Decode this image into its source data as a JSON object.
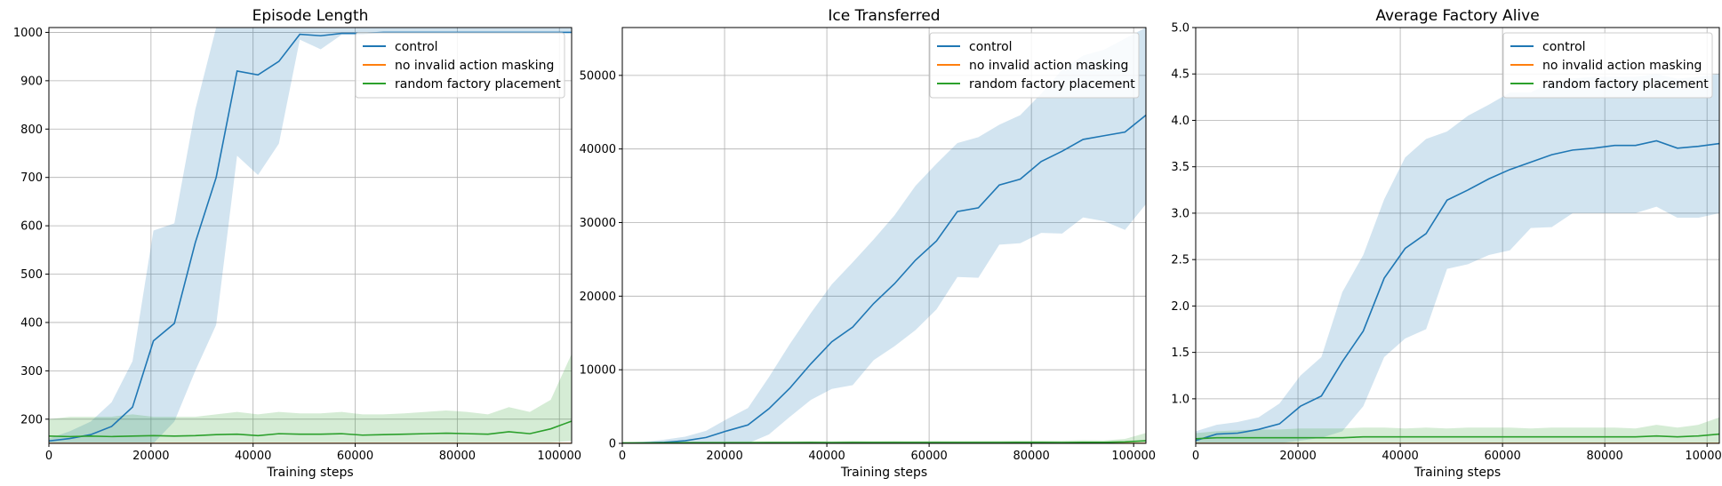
{
  "chart_data": [
    {
      "type": "line",
      "title": "Episode Length",
      "xlabel": "Training steps",
      "ylabel": "",
      "xlim": [
        0,
        102400
      ],
      "ylim": [
        150,
        1010
      ],
      "xticks": [
        0,
        20000,
        40000,
        60000,
        80000,
        100000
      ],
      "yticks": [
        200,
        300,
        400,
        500,
        600,
        700,
        800,
        900,
        1000
      ],
      "grid": true,
      "legend_position": "top-right",
      "x": [
        0,
        4096,
        8192,
        12288,
        16384,
        20480,
        24576,
        28672,
        32768,
        36864,
        40960,
        45056,
        49152,
        53248,
        57344,
        61440,
        65536,
        69632,
        73728,
        77824,
        81920,
        86016,
        90112,
        94208,
        98304,
        102400
      ],
      "series": [
        {
          "name": "control",
          "color": "#1f77b4",
          "values": [
            155,
            160,
            168,
            185,
            225,
            362,
            398,
            565,
            700,
            920,
            912,
            940,
            996,
            993,
            998,
            998,
            1000,
            1000,
            1000,
            1000,
            1000,
            1000,
            1000,
            1000,
            1000,
            1000
          ],
          "lower": [
            150,
            150,
            150,
            150,
            150,
            150,
            195,
            300,
            395,
            745,
            705,
            770,
            985,
            965,
            995,
            995,
            1000,
            1000,
            1000,
            1000,
            1000,
            1000,
            1000,
            1000,
            1000,
            1000
          ],
          "upper": [
            160,
            175,
            195,
            235,
            320,
            590,
            605,
            840,
            1010,
            1010,
            1010,
            1010,
            1010,
            1010,
            1010,
            1010,
            1010,
            1010,
            1010,
            1010,
            1010,
            1010,
            1010,
            1010,
            1010,
            1010
          ]
        },
        {
          "name": "no invalid action masking",
          "color": "#ff7f0e",
          "values": [
            150,
            150,
            150,
            150,
            150,
            150,
            150,
            150,
            150,
            150,
            150,
            150,
            150,
            150,
            150,
            150,
            150,
            150,
            150,
            150,
            150,
            150,
            150,
            150,
            150,
            150
          ]
        },
        {
          "name": "random factory placement",
          "color": "#2ca02c",
          "values": [
            165,
            164,
            165,
            164,
            165,
            166,
            165,
            166,
            168,
            169,
            166,
            170,
            169,
            169,
            170,
            167,
            168,
            169,
            170,
            171,
            170,
            169,
            174,
            170,
            180,
            196
          ],
          "lower": [
            152,
            152,
            152,
            152,
            152,
            152,
            152,
            152,
            152,
            152,
            152,
            152,
            152,
            152,
            152,
            152,
            152,
            152,
            152,
            152,
            152,
            152,
            152,
            152,
            152,
            155
          ],
          "upper": [
            200,
            205,
            205,
            205,
            210,
            205,
            205,
            205,
            210,
            215,
            210,
            215,
            212,
            212,
            215,
            210,
            210,
            212,
            215,
            218,
            215,
            210,
            225,
            215,
            240,
            335
          ]
        }
      ]
    },
    {
      "type": "line",
      "title": "Ice Transferred",
      "xlabel": "Training steps",
      "ylabel": "",
      "xlim": [
        0,
        102400
      ],
      "ylim": [
        0,
        56500
      ],
      "xticks": [
        0,
        20000,
        40000,
        60000,
        80000,
        100000
      ],
      "yticks": [
        0,
        10000,
        20000,
        30000,
        40000,
        50000
      ],
      "grid": true,
      "legend_position": "top-right",
      "x": [
        0,
        4096,
        8192,
        12288,
        16384,
        20480,
        24576,
        28672,
        32768,
        36864,
        40960,
        45056,
        49152,
        53248,
        57344,
        61440,
        65536,
        69632,
        73728,
        77824,
        81920,
        86016,
        90112,
        94208,
        98304,
        102400
      ],
      "series": [
        {
          "name": "control",
          "color": "#1f77b4",
          "values": [
            0,
            50,
            150,
            350,
            800,
            1700,
            2500,
            4700,
            7500,
            10800,
            13800,
            15800,
            19000,
            21700,
            24900,
            27500,
            31500,
            32000,
            35100,
            35900,
            38300,
            39700,
            41300,
            41800,
            42300,
            44600
          ],
          "lower": [
            0,
            0,
            0,
            0,
            0,
            0,
            0,
            1200,
            3600,
            5900,
            7400,
            7900,
            11300,
            13200,
            15400,
            18200,
            22600,
            22500,
            27000,
            27200,
            28600,
            28500,
            30700,
            30200,
            29000,
            32500
          ],
          "upper": [
            100,
            200,
            500,
            900,
            1700,
            3300,
            4800,
            9000,
            13500,
            17700,
            21600,
            24600,
            27700,
            31000,
            35000,
            38000,
            40800,
            41600,
            43300,
            44600,
            47500,
            50800,
            52700,
            53500,
            55000,
            56500
          ]
        },
        {
          "name": "no invalid action masking",
          "color": "#ff7f0e",
          "values": [
            0,
            0,
            0,
            0,
            0,
            0,
            0,
            0,
            0,
            0,
            0,
            0,
            0,
            0,
            0,
            0,
            0,
            0,
            0,
            0,
            0,
            0,
            0,
            0,
            0,
            0
          ]
        },
        {
          "name": "random factory placement",
          "color": "#2ca02c",
          "values": [
            50,
            60,
            70,
            80,
            80,
            90,
            90,
            100,
            100,
            110,
            100,
            120,
            110,
            120,
            110,
            120,
            110,
            120,
            120,
            130,
            130,
            120,
            150,
            140,
            200,
            350
          ],
          "lower": [
            0,
            0,
            0,
            0,
            0,
            0,
            0,
            0,
            0,
            0,
            0,
            0,
            0,
            0,
            0,
            0,
            0,
            0,
            0,
            0,
            0,
            0,
            0,
            0,
            0,
            0
          ],
          "upper": [
            200,
            220,
            240,
            250,
            260,
            270,
            280,
            290,
            300,
            320,
            300,
            340,
            320,
            340,
            330,
            350,
            330,
            350,
            360,
            380,
            380,
            360,
            420,
            400,
            600,
            1400
          ]
        }
      ]
    },
    {
      "type": "line",
      "title": "Average Factory Alive",
      "xlabel": "Training steps",
      "ylabel": "",
      "xlim": [
        0,
        102400
      ],
      "ylim": [
        0.52,
        5.0
      ],
      "xticks": [
        0,
        20000,
        40000,
        60000,
        80000,
        100000
      ],
      "yticks": [
        1.0,
        1.5,
        2.0,
        2.5,
        3.0,
        3.5,
        4.0,
        4.5,
        5.0
      ],
      "grid": true,
      "legend_position": "top-right",
      "x": [
        0,
        4096,
        8192,
        12288,
        16384,
        20480,
        24576,
        28672,
        32768,
        36864,
        40960,
        45056,
        49152,
        53248,
        57344,
        61440,
        65536,
        69632,
        73728,
        77824,
        81920,
        86016,
        90112,
        94208,
        98304,
        102400
      ],
      "series": [
        {
          "name": "control",
          "color": "#1f77b4",
          "values": [
            0.55,
            0.62,
            0.63,
            0.67,
            0.73,
            0.92,
            1.03,
            1.4,
            1.73,
            2.3,
            2.62,
            2.78,
            3.14,
            3.25,
            3.37,
            3.47,
            3.55,
            3.63,
            3.68,
            3.7,
            3.73,
            3.73,
            3.78,
            3.7,
            3.72,
            3.75
          ],
          "lower": [
            0.52,
            0.52,
            0.52,
            0.52,
            0.52,
            0.55,
            0.58,
            0.65,
            0.92,
            1.45,
            1.65,
            1.75,
            2.4,
            2.45,
            2.55,
            2.6,
            2.84,
            2.85,
            3.0,
            3.0,
            3.0,
            3.0,
            3.07,
            2.95,
            2.95,
            3.0
          ],
          "upper": [
            0.65,
            0.72,
            0.75,
            0.8,
            0.95,
            1.25,
            1.45,
            2.15,
            2.55,
            3.15,
            3.6,
            3.8,
            3.88,
            4.05,
            4.17,
            4.3,
            4.3,
            4.42,
            4.45,
            4.47,
            4.47,
            4.47,
            4.5,
            4.45,
            4.47,
            4.5
          ]
        },
        {
          "name": "no invalid action masking",
          "color": "#ff7f0e",
          "values": [
            0.52,
            0.52,
            0.52,
            0.52,
            0.52,
            0.52,
            0.52,
            0.52,
            0.52,
            0.52,
            0.52,
            0.52,
            0.52,
            0.52,
            0.52,
            0.52,
            0.52,
            0.52,
            0.52,
            0.52,
            0.52,
            0.52,
            0.52,
            0.52,
            0.52,
            0.52
          ]
        },
        {
          "name": "random factory placement",
          "color": "#2ca02c",
          "values": [
            0.57,
            0.58,
            0.58,
            0.58,
            0.58,
            0.58,
            0.58,
            0.58,
            0.59,
            0.59,
            0.59,
            0.59,
            0.59,
            0.59,
            0.59,
            0.59,
            0.59,
            0.59,
            0.59,
            0.59,
            0.59,
            0.59,
            0.6,
            0.59,
            0.6,
            0.62
          ],
          "lower": [
            0.52,
            0.52,
            0.52,
            0.52,
            0.52,
            0.52,
            0.52,
            0.52,
            0.52,
            0.52,
            0.52,
            0.52,
            0.52,
            0.52,
            0.52,
            0.52,
            0.52,
            0.52,
            0.52,
            0.52,
            0.52,
            0.52,
            0.52,
            0.52,
            0.52,
            0.52
          ],
          "upper": [
            0.63,
            0.65,
            0.66,
            0.67,
            0.67,
            0.68,
            0.68,
            0.68,
            0.69,
            0.69,
            0.68,
            0.69,
            0.68,
            0.69,
            0.69,
            0.69,
            0.68,
            0.69,
            0.69,
            0.69,
            0.69,
            0.68,
            0.72,
            0.69,
            0.72,
            0.8
          ]
        }
      ]
    }
  ]
}
